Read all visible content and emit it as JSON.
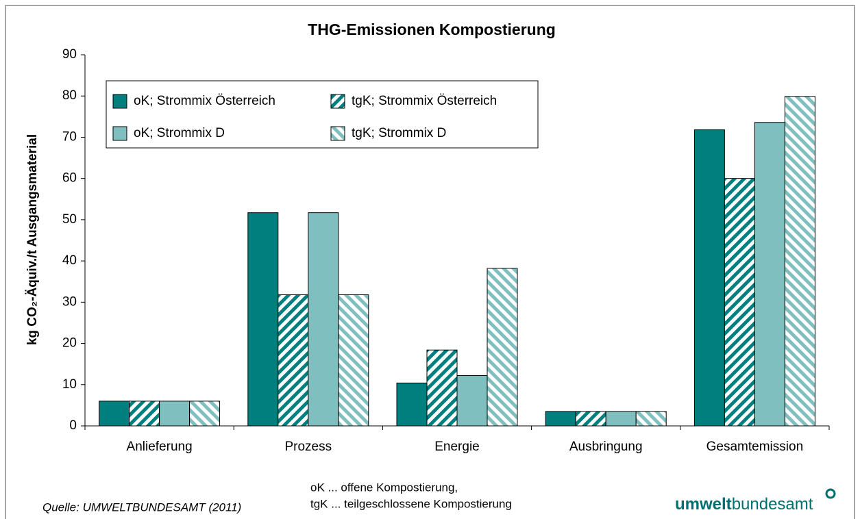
{
  "chart_data": {
    "type": "bar",
    "title": "THG-Emissionen Kompostierung",
    "ylabel": "kg CO₂-Äquiv./t Ausgangsmaterial",
    "categories": [
      "Anlieferung",
      "Prozess",
      "Energie",
      "Ausbringung",
      "Gesamtemission"
    ],
    "series": [
      {
        "name": "oK; Strommix Österreich",
        "color": "#007f7f",
        "pattern": "solid",
        "values": [
          6,
          51.7,
          10.4,
          3.5,
          71.8
        ]
      },
      {
        "name": "tgK; Strommix Österreich",
        "color": "#007f7f",
        "pattern": "hatch-up",
        "values": [
          6,
          31.8,
          18.4,
          3.5,
          60
        ]
      },
      {
        "name": "oK; Strommix D",
        "color": "#80bfbf",
        "pattern": "solid",
        "values": [
          6,
          51.7,
          12.2,
          3.5,
          73.6
        ]
      },
      {
        "name": "tgK; Strommix D",
        "color": "#80bfbf",
        "pattern": "hatch-down",
        "values": [
          6,
          31.8,
          38.2,
          3.5,
          79.9
        ]
      }
    ],
    "ylim": [
      0,
      90
    ],
    "yticks": [
      0,
      10,
      20,
      30,
      40,
      50,
      60,
      70,
      80,
      90
    ],
    "grid": false,
    "legend": "upper left"
  },
  "footer": {
    "source": "Quelle: UMWELTBUNDESAMT (2011)",
    "notes": [
      "oK ... offene Kompostierung,",
      "tgK ... teilgeschlossene Kompostierung"
    ],
    "logo": [
      "umwelt",
      "bundesamt"
    ]
  }
}
